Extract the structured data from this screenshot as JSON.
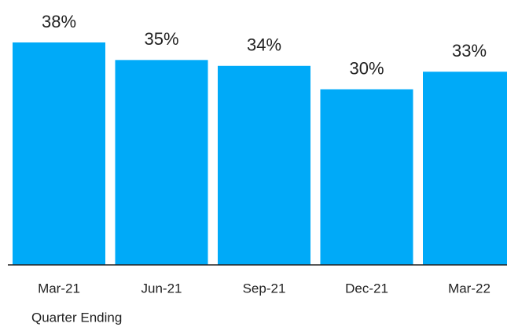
{
  "chart_data": {
    "type": "bar",
    "x_label": "Quarter Ending",
    "categories": [
      "Mar-21",
      "Jun-21",
      "Sep-21",
      "Dec-21",
      "Mar-22"
    ],
    "values": [
      38,
      35,
      34,
      30,
      33
    ],
    "value_labels": [
      "38%",
      "35%",
      "34%",
      "30%",
      "33%"
    ],
    "color": "#00aaf8"
  }
}
